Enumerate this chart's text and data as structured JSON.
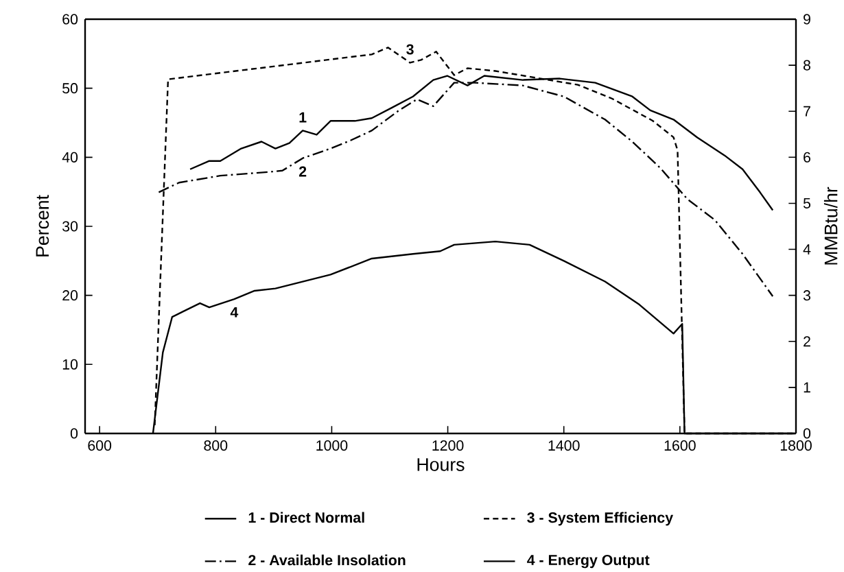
{
  "chart_data": {
    "type": "line",
    "xlabel": "Hours",
    "ylabel": "Percent",
    "y2label": "MMBtu/hr",
    "xlim": [
      575,
      1800
    ],
    "xticks": [
      600,
      800,
      1000,
      1200,
      1400,
      1600,
      1800
    ],
    "ylim": [
      0,
      60
    ],
    "yticks": [
      0,
      10,
      20,
      30,
      40,
      50,
      60
    ],
    "y2lim": [
      0,
      9
    ],
    "y2ticks": [
      0,
      1,
      2,
      3,
      4,
      5,
      6,
      7,
      8,
      9
    ],
    "legend": "bottom",
    "grid": false,
    "marker": "none",
    "annotations": [
      "1",
      "2",
      "3",
      "4"
    ],
    "series": [
      {
        "name": "1 - Direct Normal",
        "color": "#000000",
        "axis": "y2",
        "line_style": "solid",
        "x": [
          756,
          789,
          808,
          844,
          879,
          903,
          927,
          950,
          974,
          998,
          1009,
          1040,
          1069,
          1104,
          1140,
          1175,
          1199,
          1234,
          1263,
          1329,
          1393,
          1454,
          1518,
          1549,
          1589,
          1630,
          1677,
          1708,
          1738,
          1760
        ],
        "values": [
          5.74,
          5.92,
          5.92,
          6.19,
          6.34,
          6.19,
          6.31,
          6.58,
          6.49,
          6.79,
          6.79,
          6.79,
          6.85,
          7.08,
          7.32,
          7.68,
          7.77,
          7.56,
          7.77,
          7.68,
          7.71,
          7.62,
          7.32,
          7.02,
          6.82,
          6.43,
          6.04,
          5.74,
          5.24,
          4.85
        ]
      },
      {
        "name": "2 - Available Insolation",
        "color": "#000000",
        "axis": "y2",
        "line_style": "dashed",
        "x": [
          702,
          737,
          808,
          891,
          915,
          950,
          998,
          1033,
          1069,
          1116,
          1147,
          1175,
          1211,
          1246,
          1329,
          1400,
          1471,
          1518,
          1566,
          1613,
          1660,
          1708,
          1760
        ],
        "values": [
          5.24,
          5.45,
          5.6,
          5.68,
          5.71,
          5.98,
          6.19,
          6.37,
          6.58,
          7.02,
          7.26,
          7.11,
          7.62,
          7.62,
          7.56,
          7.32,
          6.82,
          6.34,
          5.77,
          5.09,
          4.64,
          3.9,
          2.98
        ]
      },
      {
        "name": "3 - System Efficiency",
        "color": "#000000",
        "axis": "y",
        "line_style": "dotted",
        "x": [
          695,
          718,
          1033,
          1069,
          1097,
          1135,
          1154,
          1180,
          1211,
          1234,
          1282,
          1353,
          1424,
          1483,
          1518,
          1553,
          1589,
          1596,
          1608,
          1700,
          1798
        ],
        "values": [
          1.2,
          51.3,
          null,
          54.9,
          55.9,
          53.7,
          54.1,
          55.3,
          51.9,
          52.9,
          52.5,
          51.5,
          50.5,
          48.5,
          46.9,
          45.3,
          42.9,
          41,
          0,
          0,
          0
        ]
      },
      {
        "name": "4 - Energy Output",
        "color": "#000000",
        "axis": "y2",
        "line_style": "solid",
        "x": [
          692,
          709,
          725,
          744,
          773,
          789,
          832,
          867,
          903,
          998,
          1069,
          1140,
          1187,
          1211,
          1282,
          1341,
          1400,
          1471,
          1530,
          1589,
          1604,
          1608,
          1700,
          1798
        ],
        "values": [
          0,
          1.76,
          2.53,
          2.65,
          2.83,
          2.74,
          2.92,
          3.1,
          3.15,
          3.45,
          3.8,
          3.9,
          3.96,
          4.1,
          4.17,
          4.1,
          3.75,
          3.3,
          2.8,
          2.17,
          2.38,
          0,
          0,
          0
        ]
      }
    ]
  }
}
